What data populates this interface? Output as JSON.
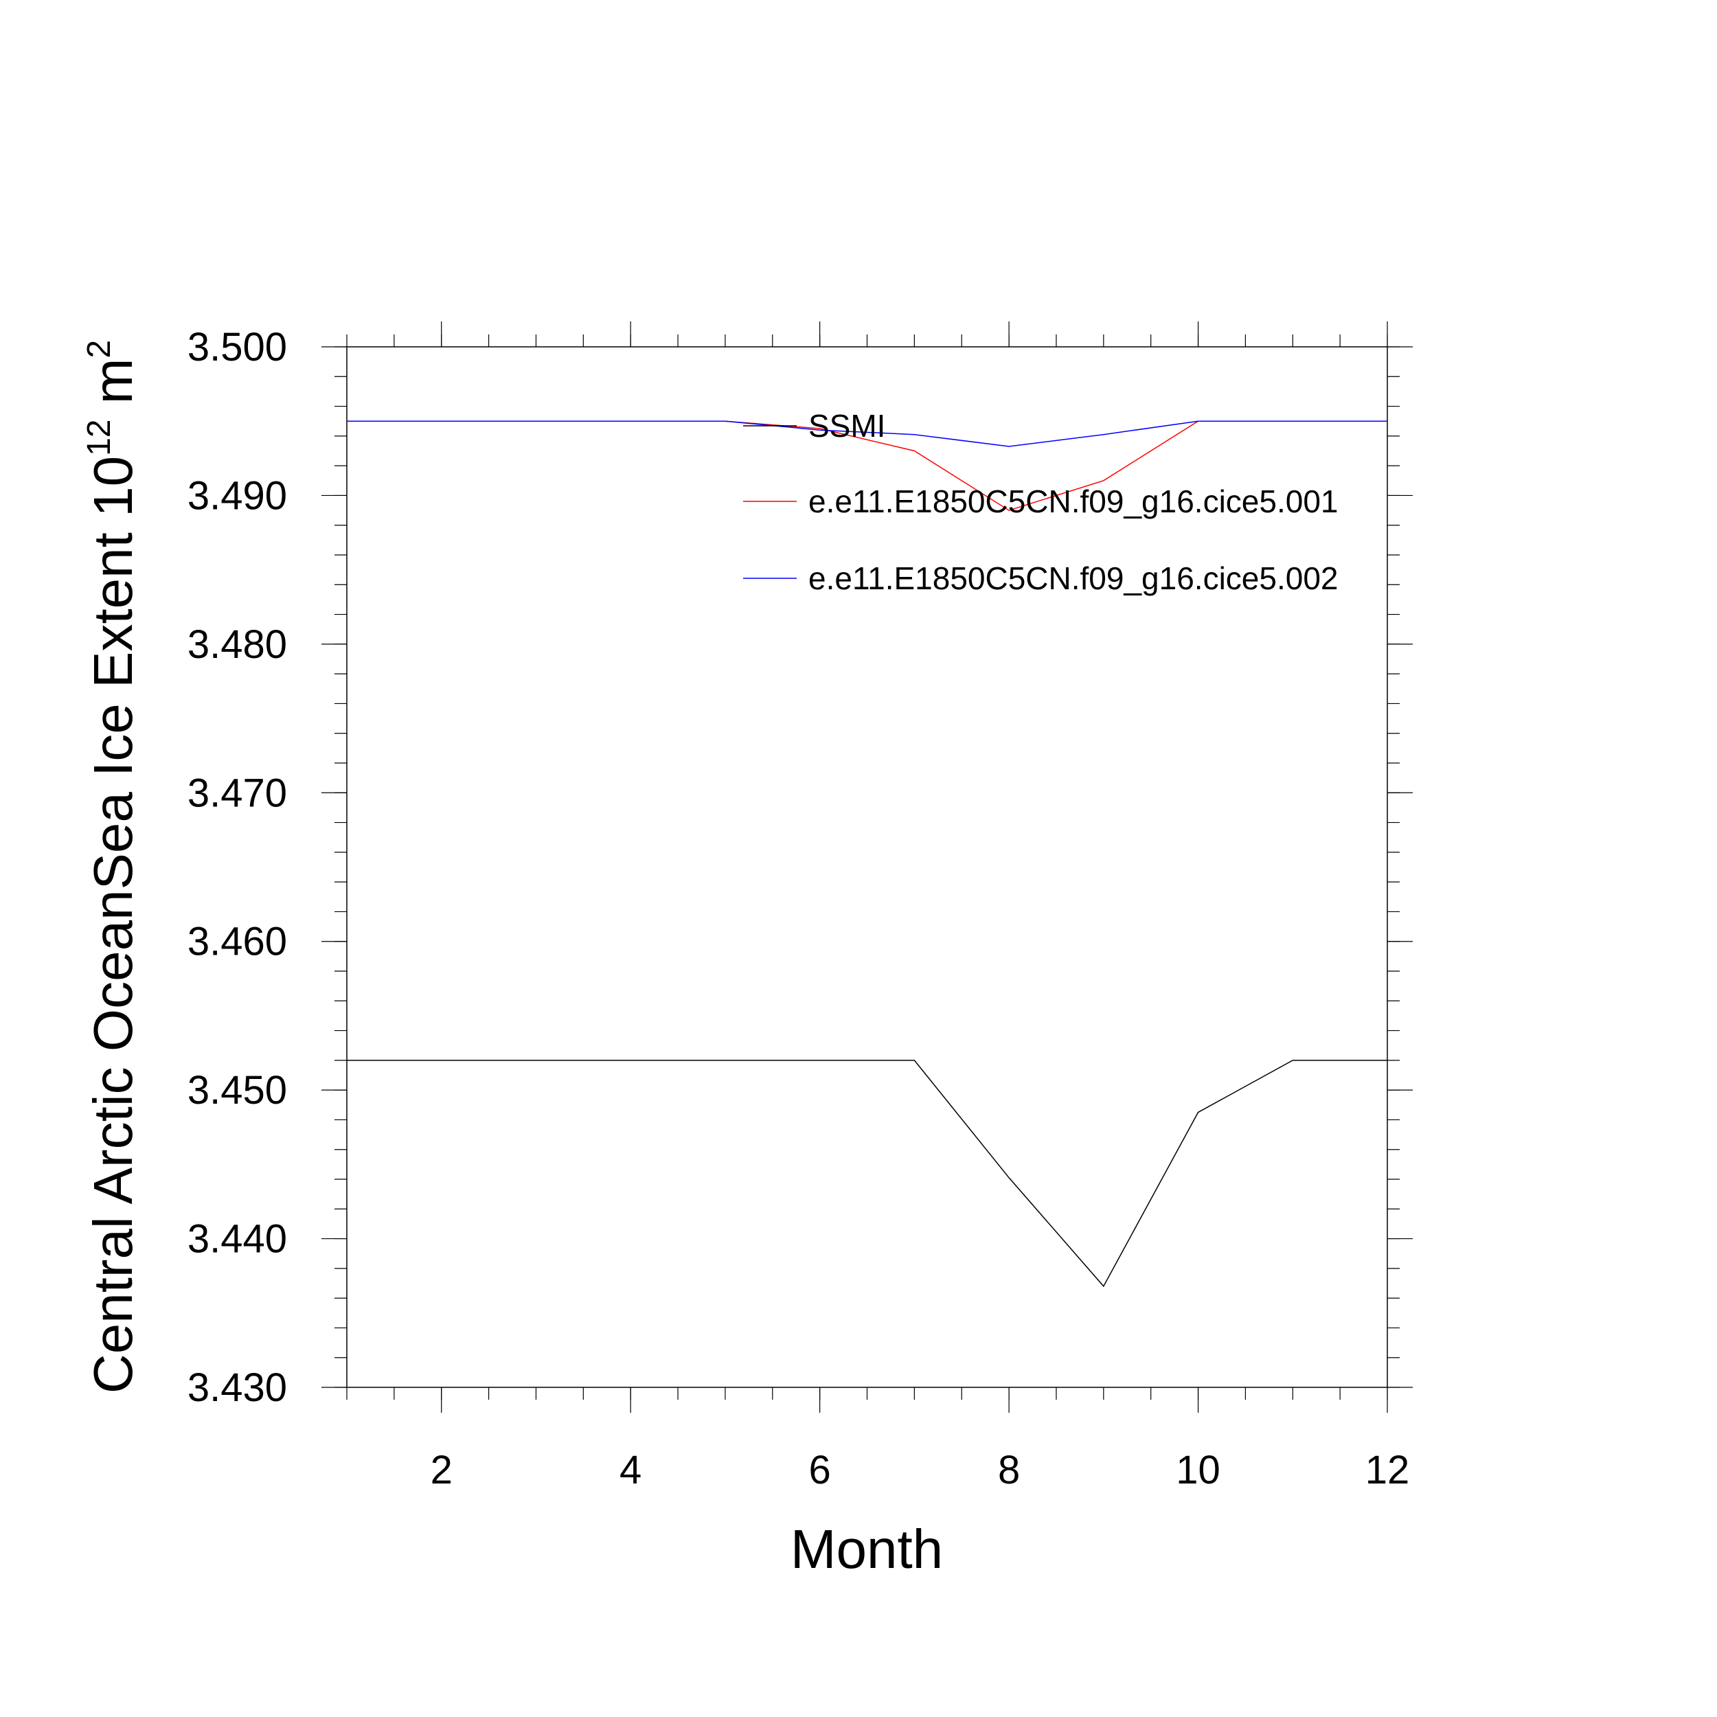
{
  "chart_data": {
    "type": "line",
    "xlabel": "Month",
    "ylabel": "Central Arctic OceanSea Ice Extent 10",
    "ylabel_exponent": "12",
    "ylabel_unit": " m",
    "ylabel_unit_exponent": "2",
    "xlim": [
      1,
      12
    ],
    "ylim": [
      3.43,
      3.5
    ],
    "x_ticks": [
      2,
      4,
      6,
      8,
      10,
      12
    ],
    "x_tick_labels": [
      "2",
      "4",
      "6",
      "8",
      "10",
      "12"
    ],
    "y_ticks": [
      3.43,
      3.44,
      3.45,
      3.46,
      3.47,
      3.48,
      3.49,
      3.5
    ],
    "y_tick_labels": [
      "3.430",
      "3.440",
      "3.450",
      "3.460",
      "3.470",
      "3.480",
      "3.490",
      "3.500"
    ],
    "grid": false,
    "legend_position": "top-right",
    "x": [
      1,
      2,
      3,
      4,
      5,
      6,
      7,
      8,
      9,
      10,
      11,
      12
    ],
    "series": [
      {
        "name": "SSMI",
        "color": "#000000",
        "values": [
          3.452,
          3.452,
          3.452,
          3.452,
          3.452,
          3.452,
          3.452,
          3.4441,
          3.4368,
          3.4485,
          3.452,
          3.452
        ]
      },
      {
        "name": "e.e11.E1850C5CN.f09_g16.cice5.001",
        "color": "#ff0000",
        "values": [
          3.495,
          3.495,
          3.495,
          3.495,
          3.495,
          3.4945,
          3.493,
          3.489,
          3.491,
          3.495,
          3.495,
          3.495
        ]
      },
      {
        "name": "e.e11.E1850C5CN.f09_g16.cice5.002",
        "color": "#0000ff",
        "values": [
          3.495,
          3.495,
          3.495,
          3.495,
          3.495,
          3.4944,
          3.4941,
          3.4933,
          3.4941,
          3.495,
          3.495,
          3.495
        ]
      }
    ]
  }
}
